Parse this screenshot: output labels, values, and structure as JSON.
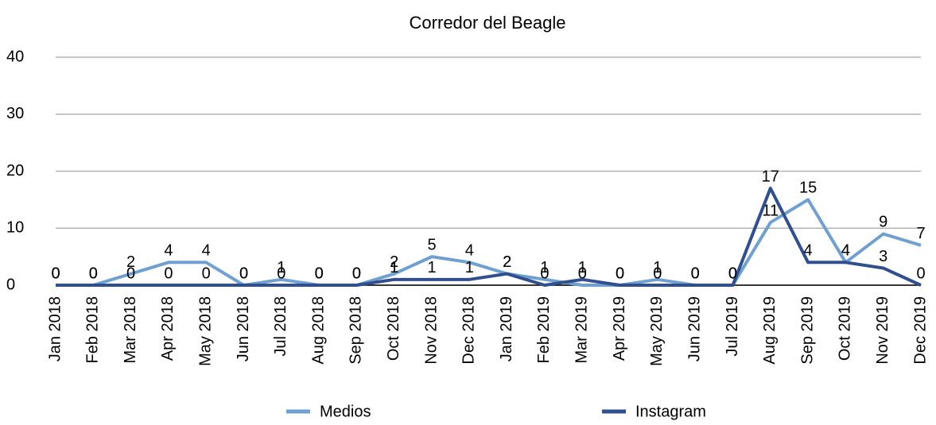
{
  "chart_data": {
    "type": "line",
    "title": "Corredor del Beagle",
    "categories": [
      "Jan 2018",
      "Feb 2018",
      "Mar 2018",
      "Apr 2018",
      "May 2018",
      "Jun 2018",
      "Jul 2018",
      "Aug 2018",
      "Sep 2018",
      "Oct 2018",
      "Nov 2018",
      "Dec 2018",
      "Jan 2019",
      "Feb 2019",
      "Mar 2019",
      "Apr 2019",
      "May 2019",
      "Jun 2019",
      "Jul 2019",
      "Aug 2019",
      "Sep 2019",
      "Oct 2019",
      "Nov 2019",
      "Dec 2019"
    ],
    "series": [
      {
        "name": "Medios",
        "color": "#6fa0d0",
        "values": [
          0,
          0,
          2,
          4,
          4,
          0,
          1,
          0,
          0,
          2,
          5,
          4,
          2,
          1,
          0,
          0,
          1,
          0,
          0,
          11,
          15,
          4,
          9,
          7
        ]
      },
      {
        "name": "Instagram",
        "color": "#2f4f8f",
        "values": [
          0,
          0,
          0,
          0,
          0,
          0,
          0,
          0,
          0,
          1,
          1,
          1,
          2,
          0,
          1,
          0,
          0,
          0,
          0,
          17,
          4,
          4,
          3,
          0
        ]
      }
    ],
    "ylim": [
      0,
      40
    ],
    "yticks": [
      0,
      10,
      20,
      30,
      40
    ],
    "grid": true,
    "legend": "bottom"
  }
}
